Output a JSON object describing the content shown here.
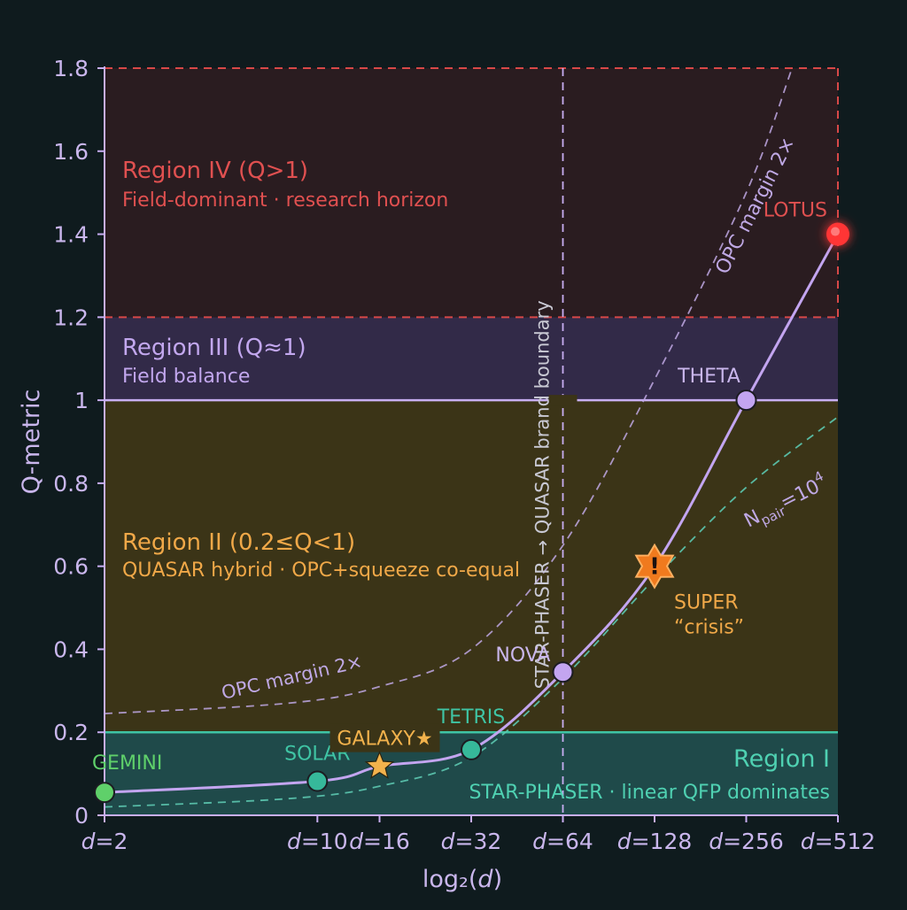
{
  "chart_data": {
    "type": "line",
    "x_scale": "log2",
    "xlabel": "log₂(d)",
    "ylabel": "Q-metric",
    "ylim": [
      0,
      1.8
    ],
    "xlim": [
      2,
      512
    ],
    "y_ticks": [
      "0",
      "0.2",
      "0.4",
      "0.6",
      "0.8",
      "1",
      "1.2",
      "1.4",
      "1.6",
      "1.8"
    ],
    "y_tick_values": [
      0,
      0.2,
      0.4,
      0.6,
      0.8,
      1.0,
      1.2,
      1.4,
      1.6,
      1.8
    ],
    "x_tick_values": [
      2,
      10,
      16,
      32,
      64,
      128,
      256,
      512
    ],
    "x_ticks": [
      "d=2",
      "d=10",
      "d=16",
      "d=32",
      "d=64",
      "d=128",
      "d=256",
      "d=512"
    ],
    "grid": false,
    "regions": [
      {
        "name": "Region I",
        "subtitle": "STAR-PHASER · linear QFP dominates",
        "y_range": [
          0,
          0.2
        ],
        "color": "#1f4a4a",
        "label_color": "#4fd1b2"
      },
      {
        "name": "Region II (0.2≤Q<1)",
        "subtitle": "QUASAR hybrid · OPC+squeeze co-equal",
        "y_range": [
          0.2,
          1.0
        ],
        "color": "#3b3417",
        "label_color": "#f0a848"
      },
      {
        "name": "Region III (Q≈1)",
        "subtitle": "Field balance",
        "y_range": [
          1.0,
          1.2
        ],
        "color": "#322a48",
        "label_color": "#c2a7ee"
      },
      {
        "name": "Region IV (Q>1)",
        "subtitle": "Field-dominant · research horizon",
        "y_range": [
          1.2,
          1.8
        ],
        "color": "#2a1c20",
        "label_color": "#e05050"
      }
    ],
    "boundary_label": "STAR-PHASER → QUASAR brand boundary",
    "boundary_x": 64,
    "series": [
      {
        "type": "line",
        "color": "#c3a5f0",
        "points": [
          {
            "x": 2,
            "y": 0.055,
            "label": "GEMINI",
            "marker": "circle",
            "color": "#5fd06a"
          },
          {
            "x": 10,
            "y": 0.082,
            "label": "SOLAR",
            "marker": "circle",
            "color": "#36b89a"
          },
          {
            "x": 16,
            "y": 0.118,
            "label": "GALAXY★",
            "marker": "star",
            "color": "#f2b24c"
          },
          {
            "x": 32,
            "y": 0.158,
            "label": "TETRIS",
            "marker": "circle",
            "color": "#36b89a"
          },
          {
            "x": 64,
            "y": 0.345,
            "label": "NOVA",
            "marker": "circle",
            "color": "#c3a5f0"
          },
          {
            "x": 128,
            "y": 0.6,
            "label": "SUPER",
            "sublabel": "“crisis”",
            "marker": "warning",
            "color": "#f07a1e"
          },
          {
            "x": 256,
            "y": 1.0,
            "label": "THETA",
            "marker": "circle",
            "color": "#c3a5f0"
          },
          {
            "x": 512,
            "y": 1.4,
            "label": "LOTUS",
            "marker": "glow",
            "color": "#ff3434"
          }
        ]
      },
      {
        "name": "OPC margin 2×",
        "type": "dashed",
        "color": "#bfa8e4",
        "points": [
          [
            2,
            0.245
          ],
          [
            8,
            0.27
          ],
          [
            16,
            0.31
          ],
          [
            32,
            0.4
          ],
          [
            64,
            0.65
          ],
          [
            128,
            1.05
          ],
          [
            256,
            1.5
          ],
          [
            362,
            1.8
          ]
        ]
      },
      {
        "name": "N",
        "name_sub": "pair",
        "name_suffix": "=10",
        "name_sup": "4",
        "type": "dashed",
        "color": "#5cc8b0",
        "points": [
          [
            2,
            0.02
          ],
          [
            8,
            0.04
          ],
          [
            16,
            0.07
          ],
          [
            32,
            0.14
          ],
          [
            64,
            0.33
          ],
          [
            128,
            0.57
          ],
          [
            256,
            0.79
          ],
          [
            512,
            0.96
          ]
        ]
      }
    ]
  }
}
